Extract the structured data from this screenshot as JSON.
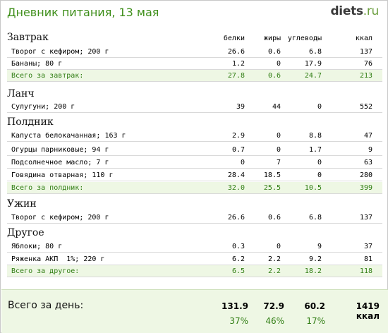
{
  "header": {
    "title": "Дневник питания, 13 мая",
    "logo_main": "diets",
    "logo_suffix": ".ru"
  },
  "columns": [
    "белки",
    "жиры",
    "углеводы",
    "ккал"
  ],
  "sections": {
    "breakfast": {
      "title": "Завтрак",
      "rows": [
        {
          "name": "Творог с кефиром; 200 г",
          "b": "26.6",
          "f": "0.6",
          "c": "6.8",
          "k": "137"
        },
        {
          "name": "Бананы; 80 г",
          "b": "1.2",
          "f": "0",
          "c": "17.9",
          "k": "76"
        }
      ],
      "total": {
        "name": "Всего за завтрак:",
        "b": "27.8",
        "f": "0.6",
        "c": "24.7",
        "k": "213"
      }
    },
    "lunch": {
      "title": "Ланч",
      "rows": [
        {
          "name": "Сулугуни; 200 г",
          "b": "39",
          "f": "44",
          "c": "0",
          "k": "552"
        }
      ]
    },
    "snack": {
      "title": "Полдник",
      "rows": [
        {
          "name": "Капуста белокачанная; 163 г",
          "b": "2.9",
          "f": "0",
          "c": "8.8",
          "k": "47"
        },
        {
          "name": "Огурцы парниковые; 94 г",
          "b": "0.7",
          "f": "0",
          "c": "1.7",
          "k": "9"
        },
        {
          "name": "Подсолнечное масло; 7 г",
          "b": "0",
          "f": "7",
          "c": "0",
          "k": "63"
        },
        {
          "name": "Говядина отварная; 110 г",
          "b": "28.4",
          "f": "18.5",
          "c": "0",
          "k": "280"
        }
      ],
      "total": {
        "name": "Всего за полдник:",
        "b": "32.0",
        "f": "25.5",
        "c": "10.5",
        "k": "399"
      }
    },
    "dinner": {
      "title": "Ужин",
      "rows": [
        {
          "name": "Творог с кефиром; 200 г",
          "b": "26.6",
          "f": "0.6",
          "c": "6.8",
          "k": "137"
        }
      ]
    },
    "other": {
      "title": "Другое",
      "rows": [
        {
          "name": "Яблоки; 80 г",
          "b": "0.3",
          "f": "0",
          "c": "9",
          "k": "37"
        },
        {
          "name": "Ряженка АКП  1%; 220 г",
          "b": "6.2",
          "f": "2.2",
          "c": "9.2",
          "k": "81"
        }
      ],
      "total": {
        "name": "Всего за другое:",
        "b": "6.5",
        "f": "2.2",
        "c": "18.2",
        "k": "118"
      }
    }
  },
  "day_total": {
    "label": "Всего за день:",
    "b": "131.9",
    "f": "72.9",
    "c": "60.2",
    "k": "1419 ккал",
    "b_pct": "37%",
    "f_pct": "46%",
    "c_pct": "17%"
  },
  "colors": {
    "accent_green": "#3f8f1b",
    "total_bg": "#eef7e4",
    "total_text": "#2f7d12"
  }
}
